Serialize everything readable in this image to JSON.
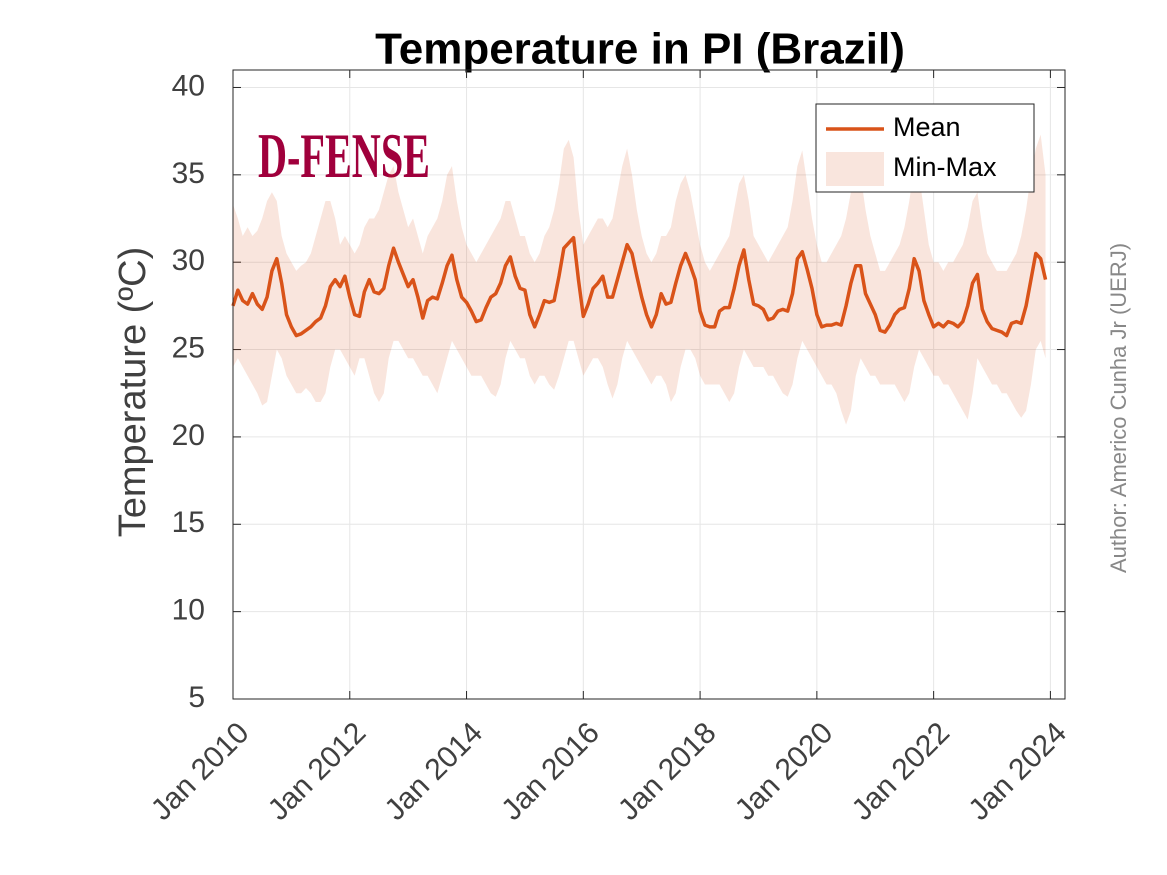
{
  "chart_data": {
    "type": "line",
    "title": "Temperature in PI (Brazil)",
    "ylabel": "Temperature (ºC)",
    "watermark": "D-FENSE",
    "annotation": "Author: Americo Cunha Jr (UERJ)",
    "grid": true,
    "legend": "upper right",
    "xlim": [
      "2010-01",
      "2024-04"
    ],
    "ylim": [
      5,
      41
    ],
    "yticks": [
      5,
      10,
      15,
      20,
      25,
      30,
      35,
      40
    ],
    "xticks": [
      {
        "value": "2010-01",
        "label": "Jan 2010"
      },
      {
        "value": "2012-01",
        "label": "Jan 2012"
      },
      {
        "value": "2014-01",
        "label": "Jan 2014"
      },
      {
        "value": "2016-01",
        "label": "Jan 2016"
      },
      {
        "value": "2018-01",
        "label": "Jan 2018"
      },
      {
        "value": "2020-01",
        "label": "Jan 2020"
      },
      {
        "value": "2022-01",
        "label": "Jan 2022"
      },
      {
        "value": "2024-01",
        "label": "Jan 2024"
      }
    ],
    "x": [
      "2010-01",
      "2010-02",
      "2010-03",
      "2010-04",
      "2010-05",
      "2010-06",
      "2010-07",
      "2010-08",
      "2010-09",
      "2010-10",
      "2010-11",
      "2010-12",
      "2011-01",
      "2011-02",
      "2011-03",
      "2011-04",
      "2011-05",
      "2011-06",
      "2011-07",
      "2011-08",
      "2011-09",
      "2011-10",
      "2011-11",
      "2011-12",
      "2012-01",
      "2012-02",
      "2012-03",
      "2012-04",
      "2012-05",
      "2012-06",
      "2012-07",
      "2012-08",
      "2012-09",
      "2012-10",
      "2012-11",
      "2012-12",
      "2013-01",
      "2013-02",
      "2013-03",
      "2013-04",
      "2013-05",
      "2013-06",
      "2013-07",
      "2013-08",
      "2013-09",
      "2013-10",
      "2013-11",
      "2013-12",
      "2014-01",
      "2014-02",
      "2014-03",
      "2014-04",
      "2014-05",
      "2014-06",
      "2014-07",
      "2014-08",
      "2014-09",
      "2014-10",
      "2014-11",
      "2014-12",
      "2015-01",
      "2015-02",
      "2015-03",
      "2015-04",
      "2015-05",
      "2015-06",
      "2015-07",
      "2015-08",
      "2015-09",
      "2015-10",
      "2015-11",
      "2015-12",
      "2016-01",
      "2016-02",
      "2016-03",
      "2016-04",
      "2016-05",
      "2016-06",
      "2016-07",
      "2016-08",
      "2016-09",
      "2016-10",
      "2016-11",
      "2016-12",
      "2017-01",
      "2017-02",
      "2017-03",
      "2017-04",
      "2017-05",
      "2017-06",
      "2017-07",
      "2017-08",
      "2017-09",
      "2017-10",
      "2017-11",
      "2017-12",
      "2018-01",
      "2018-02",
      "2018-03",
      "2018-04",
      "2018-05",
      "2018-06",
      "2018-07",
      "2018-08",
      "2018-09",
      "2018-10",
      "2018-11",
      "2018-12",
      "2019-01",
      "2019-02",
      "2019-03",
      "2019-04",
      "2019-05",
      "2019-06",
      "2019-07",
      "2019-08",
      "2019-09",
      "2019-10",
      "2019-11",
      "2019-12",
      "2020-01",
      "2020-02",
      "2020-03",
      "2020-04",
      "2020-05",
      "2020-06",
      "2020-07",
      "2020-08",
      "2020-09",
      "2020-10",
      "2020-11",
      "2020-12",
      "2021-01",
      "2021-02",
      "2021-03",
      "2021-04",
      "2021-05",
      "2021-06",
      "2021-07",
      "2021-08",
      "2021-09",
      "2021-10",
      "2021-11",
      "2021-12",
      "2022-01",
      "2022-02",
      "2022-03",
      "2022-04",
      "2022-05",
      "2022-06",
      "2022-07",
      "2022-08",
      "2022-09",
      "2022-10",
      "2022-11",
      "2022-12",
      "2023-01",
      "2023-02",
      "2023-03",
      "2023-04",
      "2023-05",
      "2023-06",
      "2023-07",
      "2023-08",
      "2023-09",
      "2023-10",
      "2023-11",
      "2023-12"
    ],
    "series": [
      {
        "name": "Mean",
        "color": "#d95319",
        "values": [
          27.5,
          28.4,
          27.8,
          27.6,
          28.2,
          27.6,
          27.3,
          28.0,
          29.5,
          30.2,
          28.8,
          27.0,
          26.3,
          25.8,
          25.9,
          26.1,
          26.3,
          26.6,
          26.8,
          27.5,
          28.6,
          29.0,
          28.6,
          29.2,
          28.0,
          27.0,
          26.9,
          28.3,
          29.0,
          28.3,
          28.2,
          28.5,
          29.8,
          30.8,
          30.0,
          29.3,
          28.6,
          29.0,
          28.0,
          26.8,
          27.8,
          28.0,
          27.9,
          28.8,
          29.8,
          30.4,
          29.0,
          28.0,
          27.7,
          27.2,
          26.6,
          26.7,
          27.4,
          28.0,
          28.2,
          28.8,
          29.8,
          30.3,
          29.2,
          28.5,
          28.4,
          27.0,
          26.3,
          27.0,
          27.8,
          27.7,
          27.8,
          29.2,
          30.8,
          31.1,
          31.4,
          29.0,
          26.9,
          27.6,
          28.5,
          28.8,
          29.2,
          28.0,
          28.0,
          29.0,
          30.0,
          31.0,
          30.5,
          29.2,
          28.0,
          27.0,
          26.3,
          27.0,
          28.2,
          27.6,
          27.7,
          28.8,
          29.8,
          30.5,
          29.8,
          29.0,
          27.2,
          26.4,
          26.3,
          26.3,
          27.2,
          27.4,
          27.4,
          28.5,
          29.8,
          30.7,
          29.0,
          27.6,
          27.5,
          27.3,
          26.7,
          26.8,
          27.2,
          27.3,
          27.2,
          28.2,
          30.2,
          30.6,
          29.6,
          28.5,
          27.0,
          26.3,
          26.4,
          26.4,
          26.5,
          26.4,
          27.5,
          28.8,
          29.8,
          29.8,
          28.2,
          27.6,
          27.0,
          26.1,
          26.0,
          26.4,
          27.0,
          27.3,
          27.4,
          28.5,
          30.2,
          29.5,
          27.8,
          27.0,
          26.3,
          26.5,
          26.3,
          26.6,
          26.5,
          26.3,
          26.6,
          27.5,
          28.8,
          29.3,
          27.3,
          26.6,
          26.2,
          26.1,
          26.0,
          25.8,
          26.5,
          26.6,
          26.5,
          27.5,
          29.0,
          30.5,
          30.2,
          29.0
        ]
      },
      {
        "name": "Min-Max",
        "color": "#d95319",
        "upper": [
          33.3,
          32.5,
          31.5,
          32.0,
          31.5,
          31.8,
          32.5,
          33.5,
          34.0,
          33.5,
          31.5,
          30.5,
          30.0,
          29.5,
          29.8,
          30.0,
          30.5,
          31.5,
          32.5,
          33.5,
          33.5,
          32.5,
          31.0,
          31.5,
          31.0,
          30.5,
          31.0,
          32.0,
          32.5,
          32.5,
          33.0,
          34.0,
          35.0,
          35.5,
          34.0,
          33.0,
          32.0,
          32.5,
          31.5,
          30.5,
          31.5,
          32.0,
          32.5,
          33.5,
          35.0,
          35.5,
          33.5,
          32.0,
          31.0,
          30.5,
          30.0,
          30.5,
          31.0,
          31.5,
          32.0,
          32.5,
          33.5,
          33.5,
          32.5,
          31.5,
          31.5,
          30.5,
          30.0,
          30.5,
          31.5,
          32.0,
          33.0,
          34.5,
          36.5,
          37.0,
          36.0,
          33.0,
          31.0,
          31.5,
          32.0,
          32.5,
          32.5,
          32.0,
          32.5,
          34.0,
          35.5,
          36.5,
          35.0,
          33.0,
          31.5,
          30.5,
          30.0,
          30.5,
          31.5,
          31.5,
          32.0,
          33.5,
          34.5,
          35.0,
          34.0,
          32.5,
          31.0,
          30.0,
          29.5,
          30.0,
          30.5,
          31.0,
          31.5,
          33.0,
          34.5,
          35.0,
          33.5,
          31.5,
          31.0,
          30.5,
          30.0,
          30.5,
          31.0,
          31.5,
          32.0,
          33.5,
          35.5,
          36.4,
          34.5,
          32.5,
          31.0,
          30.0,
          30.0,
          30.5,
          31.0,
          31.5,
          32.5,
          34.0,
          35.5,
          35.0,
          33.0,
          31.5,
          30.5,
          29.5,
          29.5,
          30.0,
          30.5,
          31.0,
          32.0,
          33.5,
          35.5,
          35.0,
          33.0,
          31.0,
          30.0,
          30.0,
          29.5,
          30.0,
          30.0,
          30.5,
          31.0,
          32.0,
          33.5,
          34.0,
          32.0,
          30.5,
          30.0,
          29.5,
          29.5,
          29.5,
          30.0,
          30.5,
          31.5,
          33.0,
          35.0,
          36.5,
          37.3,
          35.0
        ],
        "lower": [
          24.0,
          24.5,
          24.0,
          23.5,
          23.0,
          22.5,
          21.8,
          22.0,
          23.5,
          25.0,
          24.5,
          23.5,
          23.0,
          22.5,
          22.5,
          22.8,
          22.5,
          22.0,
          22.0,
          22.5,
          24.0,
          25.0,
          25.0,
          24.5,
          24.0,
          23.5,
          24.5,
          24.5,
          23.5,
          22.5,
          22.0,
          22.5,
          24.5,
          25.5,
          25.5,
          25.0,
          24.5,
          24.5,
          24.0,
          23.5,
          23.5,
          23.0,
          22.5,
          23.5,
          24.5,
          25.5,
          25.0,
          24.5,
          24.0,
          23.5,
          23.5,
          23.5,
          23.0,
          22.5,
          22.3,
          23.0,
          24.5,
          25.5,
          25.0,
          24.5,
          24.5,
          23.5,
          23.0,
          23.5,
          23.5,
          23.0,
          22.7,
          23.5,
          24.5,
          25.5,
          25.5,
          24.5,
          23.5,
          24.0,
          24.5,
          24.5,
          24.0,
          23.0,
          22.2,
          23.0,
          24.5,
          25.5,
          25.0,
          24.5,
          24.0,
          23.5,
          23.0,
          23.5,
          23.5,
          23.0,
          22.0,
          22.5,
          24.0,
          25.0,
          25.0,
          24.5,
          23.5,
          23.0,
          23.0,
          23.0,
          23.0,
          22.5,
          22.0,
          22.5,
          24.0,
          25.0,
          24.5,
          24.0,
          24.0,
          24.0,
          23.5,
          23.5,
          23.0,
          22.5,
          22.3,
          23.0,
          24.5,
          25.5,
          25.0,
          24.5,
          24.0,
          23.5,
          23.0,
          23.0,
          22.5,
          21.5,
          20.7,
          21.5,
          23.5,
          24.5,
          24.0,
          23.5,
          23.5,
          23.0,
          23.0,
          23.0,
          23.0,
          22.5,
          22.0,
          22.5,
          24.0,
          25.0,
          24.5,
          24.0,
          23.5,
          23.5,
          23.0,
          23.0,
          22.5,
          22.0,
          21.5,
          21.0,
          22.5,
          24.5,
          24.0,
          23.5,
          23.0,
          23.0,
          22.5,
          22.5,
          22.0,
          21.5,
          21.1,
          21.5,
          23.0,
          25.0,
          25.5,
          24.5
        ]
      }
    ]
  }
}
